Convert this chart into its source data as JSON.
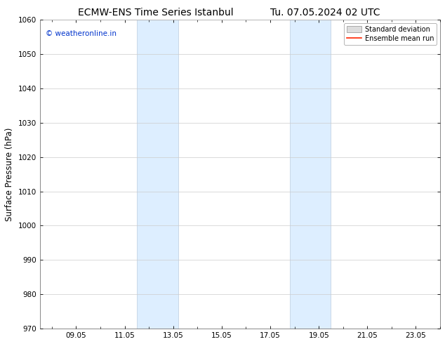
{
  "title_left": "ECMW-ENS Time Series Istanbul",
  "title_right": "Tu. 07.05.2024 02 UTC",
  "ylabel": "Surface Pressure (hPa)",
  "ylim": [
    970,
    1060
  ],
  "yticks": [
    970,
    980,
    990,
    1000,
    1010,
    1020,
    1030,
    1040,
    1050,
    1060
  ],
  "xlim_start": 7.5,
  "xlim_end": 24.0,
  "xtick_labels": [
    "09.05",
    "11.05",
    "13.05",
    "15.05",
    "17.05",
    "19.05",
    "21.05",
    "23.05"
  ],
  "xtick_positions": [
    9.0,
    11.0,
    13.0,
    15.0,
    17.0,
    19.0,
    21.0,
    23.0
  ],
  "shaded_regions": [
    {
      "xmin": 11.5,
      "xmax": 13.2
    },
    {
      "xmin": 17.8,
      "xmax": 19.5
    }
  ],
  "shaded_color": "#ddeeff",
  "shaded_edge_color": "#bbccdd",
  "watermark_text": "© weatheronline.in",
  "watermark_color": "#0033cc",
  "legend_std_label": "Standard deviation",
  "legend_ens_label": "Ensemble mean run",
  "legend_std_color": "#dddddd",
  "legend_ens_color": "#ff2200",
  "bg_color": "#ffffff",
  "grid_color": "#cccccc",
  "title_fontsize": 10,
  "axis_fontsize": 8.5,
  "tick_fontsize": 7.5
}
